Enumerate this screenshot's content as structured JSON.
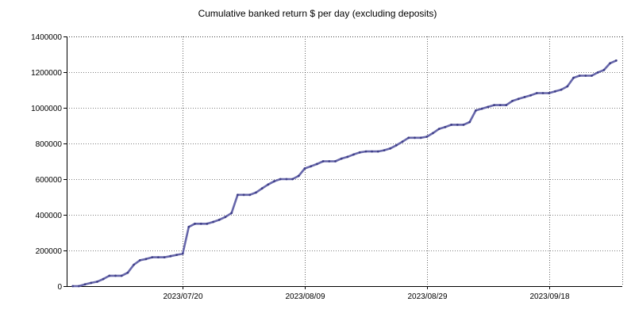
{
  "chart_data": {
    "type": "line",
    "title": "Cumulative banked return $ per day (excluding deposits)",
    "xlabel": "",
    "ylabel": "",
    "ylim": [
      0,
      1400000
    ],
    "yticks": [
      0,
      200000,
      400000,
      600000,
      800000,
      1000000,
      1200000,
      1400000
    ],
    "yticklabels": [
      "0",
      "200000",
      "400000",
      "600000",
      "800000",
      "1000000",
      "1200000",
      "1400000"
    ],
    "xlim": [
      "2023-07-01",
      "2023-09-30"
    ],
    "xticks": [
      "2023-07-20",
      "2023-08-09",
      "2023-08-29",
      "2023-09-18"
    ],
    "xticklabels": [
      "2023/07/20",
      "2023/08/09",
      "2023/08/29",
      "2023/09/18"
    ],
    "grid": true,
    "line_color": "#6666aa",
    "series": [
      {
        "x": [
          "2023-07-02",
          "2023-07-03",
          "2023-07-04",
          "2023-07-05",
          "2023-07-06",
          "2023-07-07",
          "2023-07-08",
          "2023-07-09",
          "2023-07-10",
          "2023-07-11",
          "2023-07-12",
          "2023-07-13",
          "2023-07-14",
          "2023-07-15",
          "2023-07-16",
          "2023-07-17",
          "2023-07-18",
          "2023-07-19",
          "2023-07-20",
          "2023-07-21",
          "2023-07-22",
          "2023-07-23",
          "2023-07-24",
          "2023-07-25",
          "2023-07-26",
          "2023-07-27",
          "2023-07-28",
          "2023-07-29",
          "2023-07-30",
          "2023-07-31",
          "2023-08-01",
          "2023-08-02",
          "2023-08-03",
          "2023-08-04",
          "2023-08-05",
          "2023-08-06",
          "2023-08-07",
          "2023-08-08",
          "2023-08-09",
          "2023-08-10",
          "2023-08-11",
          "2023-08-12",
          "2023-08-13",
          "2023-08-14",
          "2023-08-15",
          "2023-08-16",
          "2023-08-17",
          "2023-08-18",
          "2023-08-19",
          "2023-08-20",
          "2023-08-21",
          "2023-08-22",
          "2023-08-23",
          "2023-08-24",
          "2023-08-25",
          "2023-08-26",
          "2023-08-27",
          "2023-08-28",
          "2023-08-29",
          "2023-08-30",
          "2023-08-31",
          "2023-09-01",
          "2023-09-02",
          "2023-09-03",
          "2023-09-04",
          "2023-09-05",
          "2023-09-06",
          "2023-09-07",
          "2023-09-08",
          "2023-09-09",
          "2023-09-10",
          "2023-09-11",
          "2023-09-12",
          "2023-09-13",
          "2023-09-14",
          "2023-09-15",
          "2023-09-16",
          "2023-09-17",
          "2023-09-18",
          "2023-09-19",
          "2023-09-20",
          "2023-09-21",
          "2023-09-22",
          "2023-09-23",
          "2023-09-24",
          "2023-09-25",
          "2023-09-26",
          "2023-09-27",
          "2023-09-28",
          "2023-09-29"
        ],
        "values": [
          0,
          0,
          10000,
          18000,
          25000,
          40000,
          58000,
          58000,
          58000,
          75000,
          120000,
          145000,
          152000,
          162000,
          162000,
          162000,
          168000,
          175000,
          182000,
          332000,
          350000,
          350000,
          350000,
          360000,
          372000,
          388000,
          410000,
          512000,
          512000,
          512000,
          525000,
          548000,
          570000,
          588000,
          600000,
          600000,
          600000,
          618000,
          660000,
          672000,
          685000,
          700000,
          700000,
          700000,
          715000,
          725000,
          738000,
          750000,
          755000,
          755000,
          755000,
          762000,
          772000,
          790000,
          810000,
          832000,
          832000,
          832000,
          838000,
          858000,
          882000,
          892000,
          905000,
          905000,
          905000,
          920000,
          985000,
          995000,
          1005000,
          1015000,
          1015000,
          1015000,
          1038000,
          1050000,
          1060000,
          1070000,
          1082000,
          1082000,
          1082000,
          1092000,
          1102000,
          1120000,
          1168000,
          1180000,
          1180000,
          1180000,
          1198000,
          1212000,
          1250000,
          1265000
        ]
      }
    ]
  }
}
